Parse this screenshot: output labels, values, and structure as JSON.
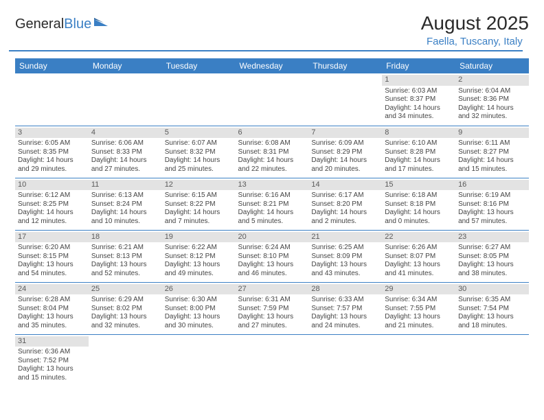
{
  "brand": {
    "part1": "General",
    "part2": "Blue"
  },
  "title": "August 2025",
  "location": "Faella, Tuscany, Italy",
  "colors": {
    "accent": "#3a7fc4",
    "dayHeaderBg": "#e3e3e3",
    "text": "#333333"
  },
  "dayNames": [
    "Sunday",
    "Monday",
    "Tuesday",
    "Wednesday",
    "Thursday",
    "Friday",
    "Saturday"
  ],
  "weeks": [
    [
      null,
      null,
      null,
      null,
      null,
      {
        "n": "1",
        "sr": "Sunrise: 6:03 AM",
        "ss": "Sunset: 8:37 PM",
        "d1": "Daylight: 14 hours",
        "d2": "and 34 minutes."
      },
      {
        "n": "2",
        "sr": "Sunrise: 6:04 AM",
        "ss": "Sunset: 8:36 PM",
        "d1": "Daylight: 14 hours",
        "d2": "and 32 minutes."
      }
    ],
    [
      {
        "n": "3",
        "sr": "Sunrise: 6:05 AM",
        "ss": "Sunset: 8:35 PM",
        "d1": "Daylight: 14 hours",
        "d2": "and 29 minutes."
      },
      {
        "n": "4",
        "sr": "Sunrise: 6:06 AM",
        "ss": "Sunset: 8:33 PM",
        "d1": "Daylight: 14 hours",
        "d2": "and 27 minutes."
      },
      {
        "n": "5",
        "sr": "Sunrise: 6:07 AM",
        "ss": "Sunset: 8:32 PM",
        "d1": "Daylight: 14 hours",
        "d2": "and 25 minutes."
      },
      {
        "n": "6",
        "sr": "Sunrise: 6:08 AM",
        "ss": "Sunset: 8:31 PM",
        "d1": "Daylight: 14 hours",
        "d2": "and 22 minutes."
      },
      {
        "n": "7",
        "sr": "Sunrise: 6:09 AM",
        "ss": "Sunset: 8:29 PM",
        "d1": "Daylight: 14 hours",
        "d2": "and 20 minutes."
      },
      {
        "n": "8",
        "sr": "Sunrise: 6:10 AM",
        "ss": "Sunset: 8:28 PM",
        "d1": "Daylight: 14 hours",
        "d2": "and 17 minutes."
      },
      {
        "n": "9",
        "sr": "Sunrise: 6:11 AM",
        "ss": "Sunset: 8:27 PM",
        "d1": "Daylight: 14 hours",
        "d2": "and 15 minutes."
      }
    ],
    [
      {
        "n": "10",
        "sr": "Sunrise: 6:12 AM",
        "ss": "Sunset: 8:25 PM",
        "d1": "Daylight: 14 hours",
        "d2": "and 12 minutes."
      },
      {
        "n": "11",
        "sr": "Sunrise: 6:13 AM",
        "ss": "Sunset: 8:24 PM",
        "d1": "Daylight: 14 hours",
        "d2": "and 10 minutes."
      },
      {
        "n": "12",
        "sr": "Sunrise: 6:15 AM",
        "ss": "Sunset: 8:22 PM",
        "d1": "Daylight: 14 hours",
        "d2": "and 7 minutes."
      },
      {
        "n": "13",
        "sr": "Sunrise: 6:16 AM",
        "ss": "Sunset: 8:21 PM",
        "d1": "Daylight: 14 hours",
        "d2": "and 5 minutes."
      },
      {
        "n": "14",
        "sr": "Sunrise: 6:17 AM",
        "ss": "Sunset: 8:20 PM",
        "d1": "Daylight: 14 hours",
        "d2": "and 2 minutes."
      },
      {
        "n": "15",
        "sr": "Sunrise: 6:18 AM",
        "ss": "Sunset: 8:18 PM",
        "d1": "Daylight: 14 hours",
        "d2": "and 0 minutes."
      },
      {
        "n": "16",
        "sr": "Sunrise: 6:19 AM",
        "ss": "Sunset: 8:16 PM",
        "d1": "Daylight: 13 hours",
        "d2": "and 57 minutes."
      }
    ],
    [
      {
        "n": "17",
        "sr": "Sunrise: 6:20 AM",
        "ss": "Sunset: 8:15 PM",
        "d1": "Daylight: 13 hours",
        "d2": "and 54 minutes."
      },
      {
        "n": "18",
        "sr": "Sunrise: 6:21 AM",
        "ss": "Sunset: 8:13 PM",
        "d1": "Daylight: 13 hours",
        "d2": "and 52 minutes."
      },
      {
        "n": "19",
        "sr": "Sunrise: 6:22 AM",
        "ss": "Sunset: 8:12 PM",
        "d1": "Daylight: 13 hours",
        "d2": "and 49 minutes."
      },
      {
        "n": "20",
        "sr": "Sunrise: 6:24 AM",
        "ss": "Sunset: 8:10 PM",
        "d1": "Daylight: 13 hours",
        "d2": "and 46 minutes."
      },
      {
        "n": "21",
        "sr": "Sunrise: 6:25 AM",
        "ss": "Sunset: 8:09 PM",
        "d1": "Daylight: 13 hours",
        "d2": "and 43 minutes."
      },
      {
        "n": "22",
        "sr": "Sunrise: 6:26 AM",
        "ss": "Sunset: 8:07 PM",
        "d1": "Daylight: 13 hours",
        "d2": "and 41 minutes."
      },
      {
        "n": "23",
        "sr": "Sunrise: 6:27 AM",
        "ss": "Sunset: 8:05 PM",
        "d1": "Daylight: 13 hours",
        "d2": "and 38 minutes."
      }
    ],
    [
      {
        "n": "24",
        "sr": "Sunrise: 6:28 AM",
        "ss": "Sunset: 8:04 PM",
        "d1": "Daylight: 13 hours",
        "d2": "and 35 minutes."
      },
      {
        "n": "25",
        "sr": "Sunrise: 6:29 AM",
        "ss": "Sunset: 8:02 PM",
        "d1": "Daylight: 13 hours",
        "d2": "and 32 minutes."
      },
      {
        "n": "26",
        "sr": "Sunrise: 6:30 AM",
        "ss": "Sunset: 8:00 PM",
        "d1": "Daylight: 13 hours",
        "d2": "and 30 minutes."
      },
      {
        "n": "27",
        "sr": "Sunrise: 6:31 AM",
        "ss": "Sunset: 7:59 PM",
        "d1": "Daylight: 13 hours",
        "d2": "and 27 minutes."
      },
      {
        "n": "28",
        "sr": "Sunrise: 6:33 AM",
        "ss": "Sunset: 7:57 PM",
        "d1": "Daylight: 13 hours",
        "d2": "and 24 minutes."
      },
      {
        "n": "29",
        "sr": "Sunrise: 6:34 AM",
        "ss": "Sunset: 7:55 PM",
        "d1": "Daylight: 13 hours",
        "d2": "and 21 minutes."
      },
      {
        "n": "30",
        "sr": "Sunrise: 6:35 AM",
        "ss": "Sunset: 7:54 PM",
        "d1": "Daylight: 13 hours",
        "d2": "and 18 minutes."
      }
    ],
    [
      {
        "n": "31",
        "sr": "Sunrise: 6:36 AM",
        "ss": "Sunset: 7:52 PM",
        "d1": "Daylight: 13 hours",
        "d2": "and 15 minutes."
      },
      null,
      null,
      null,
      null,
      null,
      null
    ]
  ]
}
